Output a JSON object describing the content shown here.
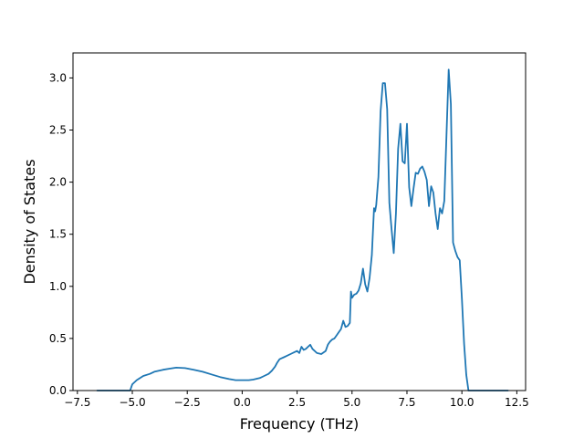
{
  "chart_data": {
    "type": "line",
    "title": "",
    "xlabel": "Frequency (THz)",
    "ylabel": "Density of States",
    "xlim": [
      -7.7,
      12.9
    ],
    "ylim": [
      0.0,
      3.24
    ],
    "grid": false,
    "legend": "none",
    "x_ticks": [
      -7.5,
      -5.0,
      -2.5,
      0.0,
      2.5,
      5.0,
      7.5,
      10.0,
      12.5
    ],
    "x_tick_labels": [
      "−7.5",
      "−5.0",
      "−2.5",
      "0.0",
      "2.5",
      "5.0",
      "7.5",
      "10.0",
      "12.5"
    ],
    "y_ticks": [
      0.0,
      0.5,
      1.0,
      1.5,
      2.0,
      2.5,
      3.0
    ],
    "y_tick_labels": [
      "0.0",
      "0.5",
      "1.0",
      "1.5",
      "2.0",
      "2.5",
      "3.0"
    ],
    "series": [
      {
        "color": "#1f77b4",
        "x": [
          -6.6,
          -5.1,
          -5.0,
          -4.8,
          -4.5,
          -4.2,
          -4.0,
          -3.6,
          -3.3,
          -3.0,
          -2.6,
          -2.2,
          -1.8,
          -1.4,
          -1.0,
          -0.6,
          -0.3,
          0.0,
          0.3,
          0.5,
          0.8,
          1.0,
          1.2,
          1.35,
          1.5,
          1.6,
          1.7,
          1.8,
          1.9,
          2.0,
          2.2,
          2.4,
          2.5,
          2.6,
          2.7,
          2.8,
          2.9,
          3.0,
          3.1,
          3.2,
          3.4,
          3.6,
          3.8,
          3.9,
          4.0,
          4.1,
          4.2,
          4.3,
          4.4,
          4.5,
          4.6,
          4.7,
          4.8,
          4.9,
          4.95,
          5.0,
          5.1,
          5.2,
          5.3,
          5.4,
          5.5,
          5.6,
          5.7,
          5.8,
          5.9,
          6.0,
          6.05,
          6.1,
          6.2,
          6.3,
          6.4,
          6.5,
          6.6,
          6.7,
          6.8,
          6.9,
          7.0,
          7.1,
          7.2,
          7.3,
          7.4,
          7.5,
          7.6,
          7.7,
          7.8,
          7.9,
          8.0,
          8.1,
          8.2,
          8.3,
          8.4,
          8.5,
          8.6,
          8.7,
          8.8,
          8.9,
          9.0,
          9.1,
          9.2,
          9.3,
          9.4,
          9.5,
          9.6,
          9.7,
          9.8,
          9.9,
          10.0,
          10.1,
          10.2,
          10.3,
          10.4,
          10.5,
          12.1
        ],
        "y": [
          0.0,
          0.0,
          0.06,
          0.1,
          0.14,
          0.16,
          0.18,
          0.2,
          0.21,
          0.22,
          0.215,
          0.2,
          0.18,
          0.155,
          0.13,
          0.11,
          0.1,
          0.1,
          0.1,
          0.105,
          0.12,
          0.14,
          0.16,
          0.19,
          0.23,
          0.27,
          0.3,
          0.31,
          0.32,
          0.33,
          0.35,
          0.37,
          0.38,
          0.36,
          0.42,
          0.39,
          0.4,
          0.42,
          0.44,
          0.4,
          0.36,
          0.35,
          0.38,
          0.44,
          0.47,
          0.49,
          0.5,
          0.53,
          0.56,
          0.59,
          0.67,
          0.61,
          0.62,
          0.65,
          0.95,
          0.89,
          0.92,
          0.93,
          0.96,
          1.03,
          1.17,
          1.02,
          0.95,
          1.08,
          1.3,
          1.75,
          1.72,
          1.78,
          2.05,
          2.68,
          2.95,
          2.95,
          2.7,
          1.8,
          1.55,
          1.32,
          1.7,
          2.32,
          2.56,
          2.2,
          2.18,
          2.56,
          1.95,
          1.77,
          1.94,
          2.09,
          2.08,
          2.13,
          2.15,
          2.1,
          2.02,
          1.77,
          1.96,
          1.9,
          1.7,
          1.55,
          1.75,
          1.7,
          1.82,
          2.45,
          3.08,
          2.75,
          1.42,
          1.34,
          1.28,
          1.25,
          0.88,
          0.45,
          0.15,
          0.0,
          0.0,
          0.0,
          0.0
        ]
      }
    ]
  }
}
